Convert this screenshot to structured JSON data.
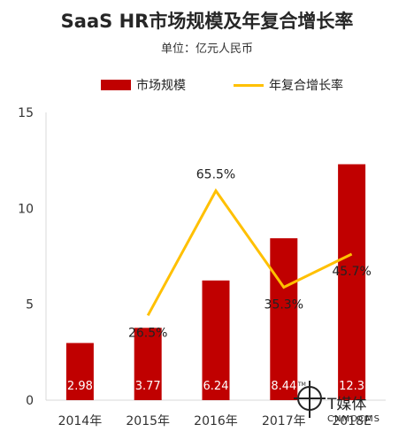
{
  "chart_data": {
    "type": "bar",
    "title": "SaaS HR市场规模及年复合增长率",
    "subtitle": "单位：亿元人民币",
    "categories": [
      "2014年",
      "2015年",
      "2016年",
      "2017年",
      "2018E"
    ],
    "series": [
      {
        "name": "市场规模",
        "type": "bar",
        "color": "#c00000",
        "values": [
          2.98,
          3.77,
          6.24,
          8.44,
          12.3
        ],
        "labels": [
          "2.98",
          "3.77",
          "6.24",
          "8.44",
          "12.3"
        ]
      },
      {
        "name": "年复合增长率",
        "type": "line",
        "color": "#ffc000",
        "values": [
          null,
          26.5,
          65.5,
          35.3,
          45.7
        ],
        "labels": [
          "",
          "26.5%",
          "65.5%",
          "35.3%",
          "45.7%"
        ]
      }
    ],
    "yticks": [
      "0",
      "5",
      "10",
      "15"
    ],
    "ylim": [
      0,
      15
    ],
    "secondary_ylim": [
      0,
      90
    ],
    "legend_position": "top",
    "grid": false
  },
  "watermark": {
    "brand": "T媒体",
    "domain": "CNMOCMS"
  },
  "colors": {
    "bar": "#c00000",
    "line": "#ffc000",
    "axis": "#d9d9d9"
  }
}
